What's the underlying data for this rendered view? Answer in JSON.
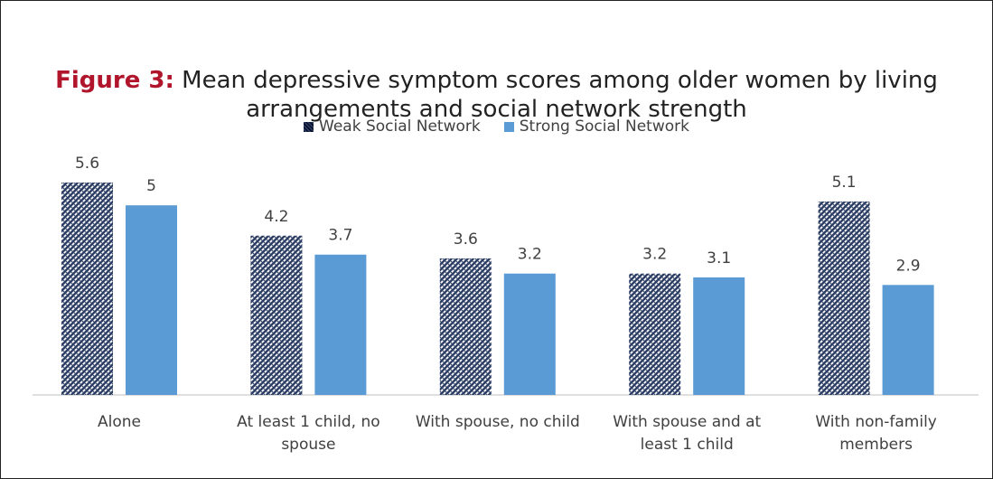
{
  "title": {
    "label": "Figure 3:",
    "line1": "Mean depressive symptom scores among older women by living",
    "line2": "arrangements and social network strength"
  },
  "colors": {
    "weak_pattern": "#2E3F66",
    "strong": "#5B9BD5",
    "title_label": "#B0152B",
    "text": "#404040"
  },
  "legend": {
    "position": "top",
    "weak": "Weak Social Network",
    "strong": "Strong Social Network"
  },
  "chart_data": {
    "type": "bar",
    "title": "Figure 3: Mean depressive symptom scores among older women by living arrangements and social network strength",
    "categories": [
      [
        "Alone"
      ],
      [
        "At least 1 child, no",
        "spouse"
      ],
      [
        "With spouse, no child"
      ],
      [
        "With spouse and at",
        "least 1 child"
      ],
      [
        "With non-family",
        "members"
      ]
    ],
    "series": [
      {
        "name": "Weak Social Network",
        "values": [
          5.6,
          4.2,
          3.6,
          3.2,
          5.1
        ],
        "labels": [
          "5.6",
          "4.2",
          "3.6",
          "3.2",
          "5.1"
        ]
      },
      {
        "name": "Strong Social Network",
        "values": [
          5,
          3.7,
          3.2,
          3.1,
          2.9
        ],
        "labels": [
          "5",
          "3.7",
          "3.2",
          "3.1",
          "2.9"
        ]
      }
    ],
    "xlabel": "",
    "ylabel": "",
    "ylim": [
      0,
      5.6
    ],
    "grid": false,
    "data_labels": true
  }
}
